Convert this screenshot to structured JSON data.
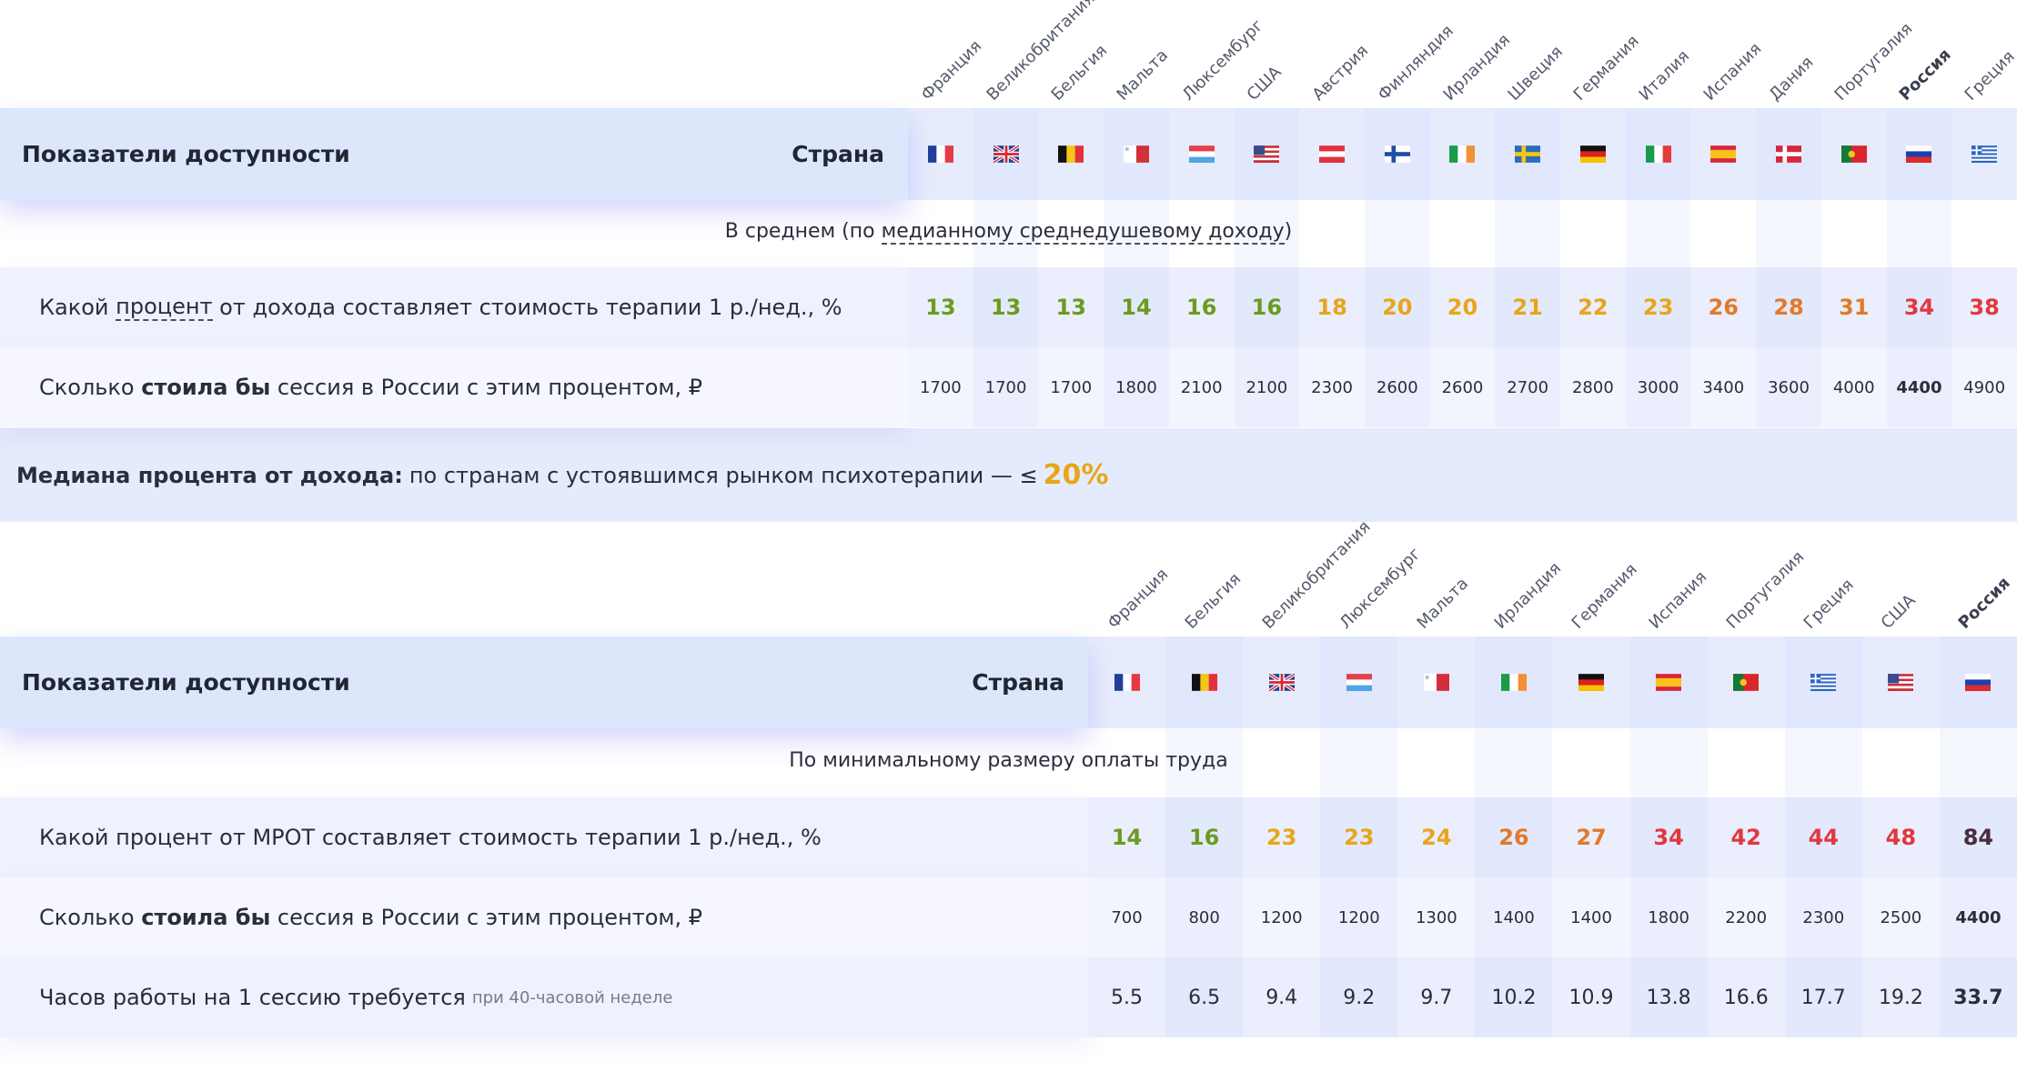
{
  "tables": [
    {
      "title": "Показатели доступности",
      "country_header": "Страна",
      "countries": [
        "Франция",
        "Великобритания",
        "Бельгия",
        "Мальта",
        "Люксембург",
        "США",
        "Австрия",
        "Финляндия",
        "Ирландия",
        "Швеция",
        "Германия",
        "Италия",
        "Испания",
        "Дания",
        "Португалия",
        "Россия",
        "Греция"
      ],
      "highlight_column": 15,
      "section": [
        "В среднем (по ",
        "медианному среднедушевому доходу",
        ")"
      ],
      "rows": [
        {
          "label": [
            "Какой ",
            "процент",
            " от дохода составляет стоимость терапии 1 р./нед., %"
          ],
          "values": [
            13,
            13,
            13,
            14,
            16,
            16,
            18,
            20,
            20,
            21,
            22,
            23,
            26,
            28,
            31,
            34,
            38
          ],
          "colors": [
            "#6b9b1e",
            "#6b9b1e",
            "#6b9b1e",
            "#6b9b1e",
            "#6b9b1e",
            "#6b9b1e",
            "#e8a51a",
            "#e8a51a",
            "#e8a51a",
            "#e8a51a",
            "#e8a51a",
            "#e8a51a",
            "#e2792a",
            "#e2792a",
            "#e2792a",
            "#e0383e",
            "#e0383e"
          ]
        },
        {
          "label": [
            "Сколько ",
            "стоила бы",
            " сессия в России с этим процентом, ₽"
          ],
          "values": [
            1700,
            1700,
            1700,
            1800,
            2100,
            2100,
            2300,
            2600,
            2600,
            2700,
            2800,
            3000,
            3400,
            3600,
            4000,
            4400,
            4900
          ]
        }
      ]
    },
    {
      "title": "Показатели доступности",
      "country_header": "Страна",
      "countries": [
        "Франция",
        "Бельгия",
        "Великобритания",
        "Люксембург",
        "Мальта",
        "Ирландия",
        "Германия",
        "Испания",
        "Португалия",
        "Греция",
        "США",
        "Россия"
      ],
      "highlight_column": 11,
      "section": [
        "По минимальному размеру оплаты труда"
      ],
      "rows": [
        {
          "label": [
            "Какой процент от МРОТ составляет стоимость терапии 1 р./нед., %"
          ],
          "values": [
            14,
            16,
            23,
            23,
            24,
            26,
            27,
            34,
            42,
            44,
            48,
            84
          ],
          "colors": [
            "#6b9b1e",
            "#6b9b1e",
            "#e8a51a",
            "#e8a51a",
            "#e8a51a",
            "#e2792a",
            "#e2792a",
            "#e0383e",
            "#e0383e",
            "#e0383e",
            "#e0383e",
            "#4a2b3c"
          ]
        },
        {
          "label": [
            "Сколько ",
            "стоила бы",
            " сессия в России с этим процентом, ₽"
          ],
          "values": [
            700,
            800,
            1200,
            1200,
            1300,
            1400,
            1400,
            1800,
            2200,
            2300,
            2500,
            4400
          ]
        },
        {
          "label": [
            "Часов работы на 1 сессию требуется",
            "при 40-часовой неделе"
          ],
          "values": [
            5.5,
            6.5,
            9.4,
            9.2,
            9.7,
            10.2,
            10.9,
            13.8,
            16.6,
            17.7,
            19.2,
            33.7
          ]
        }
      ]
    }
  ],
  "median_note": {
    "bold": "Медиана процента от дохода:",
    "text": "по странам с устоявшимся рынком психотерапии — ≤",
    "value": "20%"
  }
}
